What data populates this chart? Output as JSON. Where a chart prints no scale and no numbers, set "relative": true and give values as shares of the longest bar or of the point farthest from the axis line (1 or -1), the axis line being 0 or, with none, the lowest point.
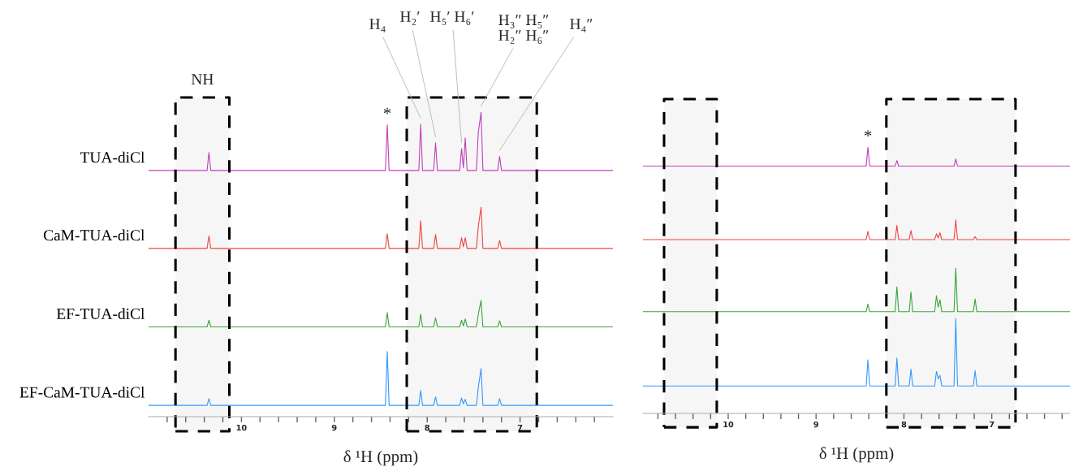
{
  "chart_data": [
    {
      "type": "line",
      "relative": true,
      "xlabel": "δ ¹H (ppm)",
      "xlim": [
        11,
        6
      ],
      "xticks": [
        {
          "value": 10.8,
          "label": null
        },
        {
          "value": 10.6,
          "label": null
        },
        {
          "value": 10.4,
          "label": null
        },
        {
          "value": 10.2,
          "label": null
        },
        10,
        {
          "value": 9.8,
          "label": null
        },
        {
          "value": 9.6,
          "label": null
        },
        {
          "value": 9.4,
          "label": null
        },
        {
          "value": 9.2,
          "label": null
        },
        9,
        {
          "value": 8.8,
          "label": null
        },
        {
          "value": 8.6,
          "label": null
        },
        {
          "value": 8.4,
          "label": null
        },
        {
          "value": 8.2,
          "label": null
        },
        8,
        {
          "value": 7.8,
          "label": null
        },
        {
          "value": 7.6,
          "label": null
        },
        {
          "value": 7.4,
          "label": null
        },
        {
          "value": 7.2,
          "label": null
        },
        7,
        {
          "value": 6.8,
          "label": null
        },
        {
          "value": 6.6,
          "label": null
        },
        {
          "value": 6.4,
          "label": null
        },
        {
          "value": 6.2,
          "label": null
        }
      ],
      "x": [
        11,
        10.37,
        10.35,
        10.33,
        8.45,
        8.43,
        8.41,
        8.09,
        8.07,
        8.05,
        7.93,
        7.91,
        7.89,
        7.65,
        7.63,
        7.61,
        7.59,
        7.57,
        7.47,
        7.45,
        7.42,
        7.4,
        7.24,
        7.22,
        7.2,
        6
      ],
      "series": [
        {
          "name": "TUA-diCl",
          "color": "#c040b8",
          "values": [
            0.809,
            0.809,
            0.868,
            0.809,
            0.809,
            0.959,
            0.809,
            0.809,
            0.961,
            0.809,
            0.809,
            0.9,
            0.809,
            0.809,
            0.881,
            0.818,
            0.916,
            0.809,
            0.809,
            0.933,
            1,
            0.809,
            0.809,
            0.855,
            0.809,
            0.809
          ]
        },
        {
          "name": "CaM-TUA-diCl",
          "color": "#f04444",
          "values": [
            0.553,
            0.553,
            0.594,
            0.553,
            0.553,
            0.601,
            0.553,
            0.553,
            0.644,
            0.553,
            0.553,
            0.599,
            0.553,
            0.553,
            0.588,
            0.558,
            0.588,
            0.553,
            0.553,
            0.625,
            0.688,
            0.553,
            0.553,
            0.579,
            0.553,
            0.553
          ]
        },
        {
          "name": "EF-TUA-diCl",
          "color": "#3aa63a",
          "values": [
            0.295,
            0.295,
            0.317,
            0.295,
            0.295,
            0.342,
            0.295,
            0.295,
            0.337,
            0.295,
            0.295,
            0.325,
            0.295,
            0.295,
            0.317,
            0.298,
            0.321,
            0.295,
            0.295,
            0.336,
            0.382,
            0.295,
            0.295,
            0.315,
            0.295,
            0.295
          ]
        },
        {
          "name": "EF-CaM-TUA-diCl",
          "color": "#3399ff",
          "values": [
            0.037,
            0.037,
            0.059,
            0.037,
            0.037,
            0.214,
            0.037,
            0.037,
            0.086,
            0.037,
            0.037,
            0.065,
            0.037,
            0.037,
            0.061,
            0.042,
            0.057,
            0.037,
            0.037,
            0.095,
            0.158,
            0.037,
            0.037,
            0.059,
            0.037,
            0.037
          ]
        }
      ],
      "bands": [
        {
          "axis": "x",
          "from": 10.71,
          "to": 10.13,
          "label": "NH",
          "color": "#000000"
        },
        {
          "axis": "x",
          "from": 8.22,
          "to": 6.82,
          "color": "#000000"
        }
      ],
      "annotations": [
        {
          "text": "*",
          "x": 8.43,
          "y": 0.959
        },
        {
          "text": "H₄",
          "x": 8.07,
          "y": 0.961
        },
        {
          "text": "H₂′",
          "x": 7.91,
          "y": 0.9
        },
        {
          "text": "H₅′ H₆′",
          "x": 7.63,
          "y": 0.881
        },
        {
          "text": "H₃″ H₅″\nH₂″ H₆″",
          "x": 7.42,
          "y": 1
        },
        {
          "text": "H₄″",
          "x": 7.22,
          "y": 0.855
        }
      ]
    },
    {
      "type": "line",
      "relative": true,
      "xlabel": "δ ¹H (ppm)",
      "xlim": [
        10.97,
        6.11
      ],
      "xticks": [
        {
          "value": 10.8,
          "label": null
        },
        {
          "value": 10.6,
          "label": null
        },
        {
          "value": 10.4,
          "label": null
        },
        {
          "value": 10.2,
          "label": null
        },
        10,
        {
          "value": 9.8,
          "label": null
        },
        {
          "value": 9.6,
          "label": null
        },
        {
          "value": 9.4,
          "label": null
        },
        {
          "value": 9.2,
          "label": null
        },
        9,
        {
          "value": 8.8,
          "label": null
        },
        {
          "value": 8.6,
          "label": null
        },
        {
          "value": 8.4,
          "label": null
        },
        {
          "value": 8.2,
          "label": null
        },
        8,
        {
          "value": 7.8,
          "label": null
        },
        {
          "value": 7.6,
          "label": null
        },
        {
          "value": 7.4,
          "label": null
        },
        {
          "value": 7.2,
          "label": null
        },
        7,
        {
          "value": 6.8,
          "label": null
        },
        {
          "value": 6.6,
          "label": null
        },
        {
          "value": 6.4,
          "label": null
        },
        {
          "value": 6.2,
          "label": null
        }
      ],
      "x": [
        10.97,
        8.43,
        8.41,
        8.39,
        8.1,
        8.08,
        8.06,
        7.94,
        7.92,
        7.9,
        7.65,
        7.63,
        7.61,
        7.59,
        7.57,
        7.43,
        7.41,
        7.39,
        7.21,
        7.19,
        7.17,
        6.11
      ],
      "series": [
        {
          "color": "#c040b8",
          "values": [
            0.929,
            0.929,
            1,
            0.929,
            0.929,
            0.95,
            0.929,
            0.929,
            0.929,
            0.929,
            0.929,
            0.929,
            0.929,
            0.929,
            0.929,
            0.929,
            0.956,
            0.929,
            0.929,
            0.929,
            0.929,
            0.929
          ]
        },
        {
          "color": "#f04444",
          "values": [
            0.653,
            0.653,
            0.684,
            0.653,
            0.653,
            0.706,
            0.653,
            0.653,
            0.687,
            0.653,
            0.653,
            0.675,
            0.659,
            0.679,
            0.653,
            0.653,
            0.727,
            0.653,
            0.653,
            0.664,
            0.653,
            0.653
          ]
        },
        {
          "color": "#3aa63a",
          "values": [
            0.382,
            0.382,
            0.411,
            0.382,
            0.382,
            0.476,
            0.382,
            0.382,
            0.456,
            0.382,
            0.382,
            0.442,
            0.399,
            0.427,
            0.382,
            0.382,
            0.545,
            0.382,
            0.382,
            0.43,
            0.382,
            0.382
          ]
        },
        {
          "color": "#3399ff",
          "values": [
            0.103,
            0.103,
            0.201,
            0.103,
            0.103,
            0.208,
            0.103,
            0.103,
            0.166,
            0.103,
            0.103,
            0.158,
            0.13,
            0.143,
            0.103,
            0.103,
            0.356,
            0.103,
            0.103,
            0.161,
            0.103,
            0.103
          ]
        }
      ],
      "bands": [
        {
          "axis": "x",
          "from": 10.73,
          "to": 10.13,
          "color": "#000000"
        },
        {
          "axis": "x",
          "from": 8.2,
          "to": 6.73,
          "color": "#000000"
        }
      ],
      "annotations": [
        {
          "text": "*",
          "x": 8.41,
          "y": 1
        }
      ]
    }
  ]
}
